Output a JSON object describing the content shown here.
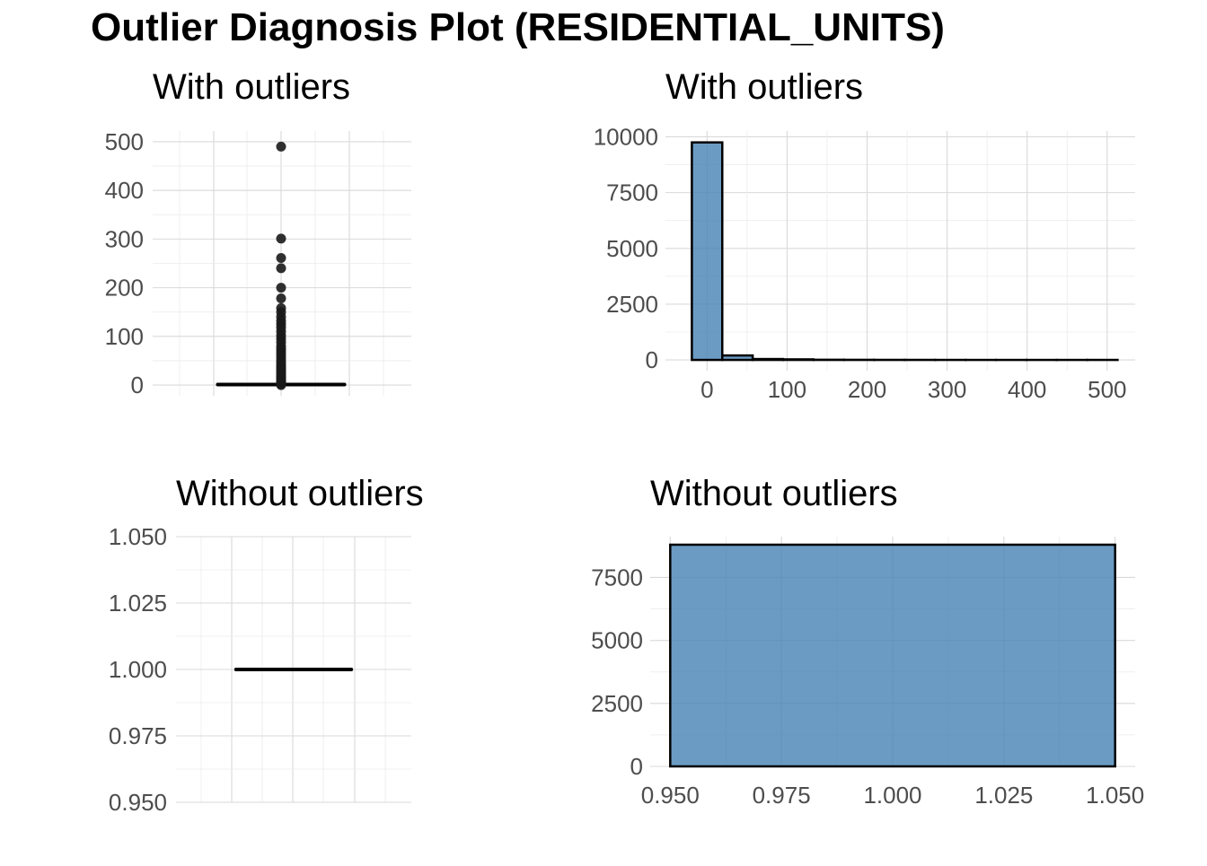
{
  "figure": {
    "title": "Outlier Diagnosis Plot (RESIDENTIAL_UNITS)"
  },
  "chart_data": [
    {
      "id": "p1",
      "type": "boxplot",
      "title": "With outliers",
      "xlabel": "",
      "ylabel": "",
      "ylim": [
        -22,
        522
      ],
      "yticks": [
        0,
        100,
        200,
        300,
        400,
        500
      ],
      "ytick_labels": [
        "0",
        "100",
        "200",
        "300",
        "400",
        "500"
      ],
      "grid": true,
      "box": {
        "q1": 1,
        "median": 1,
        "q3": 1,
        "whisker_low": 1,
        "whisker_high": 1
      },
      "outliers": [
        490,
        301,
        261,
        240,
        200,
        178,
        158,
        150,
        140,
        132,
        125,
        118,
        110,
        102,
        95,
        88,
        80,
        74,
        68,
        62,
        56,
        50,
        45,
        40,
        36,
        32,
        28,
        24,
        20,
        17,
        14,
        11,
        8,
        6,
        4,
        2,
        0
      ],
      "colors": {
        "fill": "#ffffff",
        "line": "#000000",
        "point": "#1a1a1a"
      }
    },
    {
      "id": "p2",
      "type": "bar",
      "title": "With outliers",
      "xlabel": "",
      "ylabel": "",
      "xlim": [
        -52,
        535
      ],
      "ylim": [
        -480,
        10260
      ],
      "xticks": [
        0,
        100,
        200,
        300,
        400,
        500
      ],
      "xtick_labels": [
        "0",
        "100",
        "200",
        "300",
        "400",
        "500"
      ],
      "yticks": [
        0,
        2500,
        5000,
        7500,
        10000
      ],
      "ytick_labels": [
        "0",
        "2500",
        "5000",
        "7500",
        "10000"
      ],
      "grid": true,
      "bin_width": 38,
      "bins": [
        {
          "x0": -19,
          "x1": 19,
          "count": 9750
        },
        {
          "x0": 19,
          "x1": 57,
          "count": 200
        },
        {
          "x0": 57,
          "x1": 95,
          "count": 40
        },
        {
          "x0": 95,
          "x1": 133,
          "count": 25
        },
        {
          "x0": 133,
          "x1": 171,
          "count": 8
        },
        {
          "x0": 171,
          "x1": 209,
          "count": 5
        },
        {
          "x0": 209,
          "x1": 247,
          "count": 3
        },
        {
          "x0": 247,
          "x1": 285,
          "count": 2
        },
        {
          "x0": 285,
          "x1": 323,
          "count": 1
        },
        {
          "x0": 323,
          "x1": 361,
          "count": 0
        },
        {
          "x0": 361,
          "x1": 399,
          "count": 0
        },
        {
          "x0": 399,
          "x1": 437,
          "count": 0
        },
        {
          "x0": 437,
          "x1": 475,
          "count": 0
        },
        {
          "x0": 475,
          "x1": 513,
          "count": 1
        }
      ],
      "colors": {
        "fill": "#4682b4",
        "stroke": "#000000"
      }
    },
    {
      "id": "p3",
      "type": "boxplot",
      "title": "Without outliers",
      "xlabel": "",
      "ylabel": "",
      "ylim": [
        0.95,
        1.05
      ],
      "yticks": [
        0.95,
        0.975,
        1.0,
        1.025,
        1.05
      ],
      "ytick_labels": [
        "0.950",
        "0.975",
        "1.000",
        "1.025",
        "1.050"
      ],
      "grid": true,
      "box": {
        "q1": 1,
        "median": 1,
        "q3": 1,
        "whisker_low": 1,
        "whisker_high": 1
      },
      "outliers": [],
      "colors": {
        "fill": "#ffffff",
        "line": "#000000"
      }
    },
    {
      "id": "p4",
      "type": "bar",
      "title": "Without outliers",
      "xlabel": "",
      "ylabel": "",
      "xlim": [
        0.9455,
        1.0545
      ],
      "ylim": [
        0,
        9120
      ],
      "xticks": [
        0.95,
        0.975,
        1.0,
        1.025,
        1.05
      ],
      "xtick_labels": [
        "0.950",
        "0.975",
        "1.000",
        "1.025",
        "1.050"
      ],
      "yticks": [
        0,
        2500,
        5000,
        7500
      ],
      "ytick_labels": [
        "0",
        "2500",
        "5000",
        "7500"
      ],
      "grid": true,
      "bins": [
        {
          "x0": 0.95,
          "x1": 1.05,
          "count": 8800
        }
      ],
      "colors": {
        "fill": "#4682b4",
        "stroke": "#000000"
      }
    }
  ]
}
